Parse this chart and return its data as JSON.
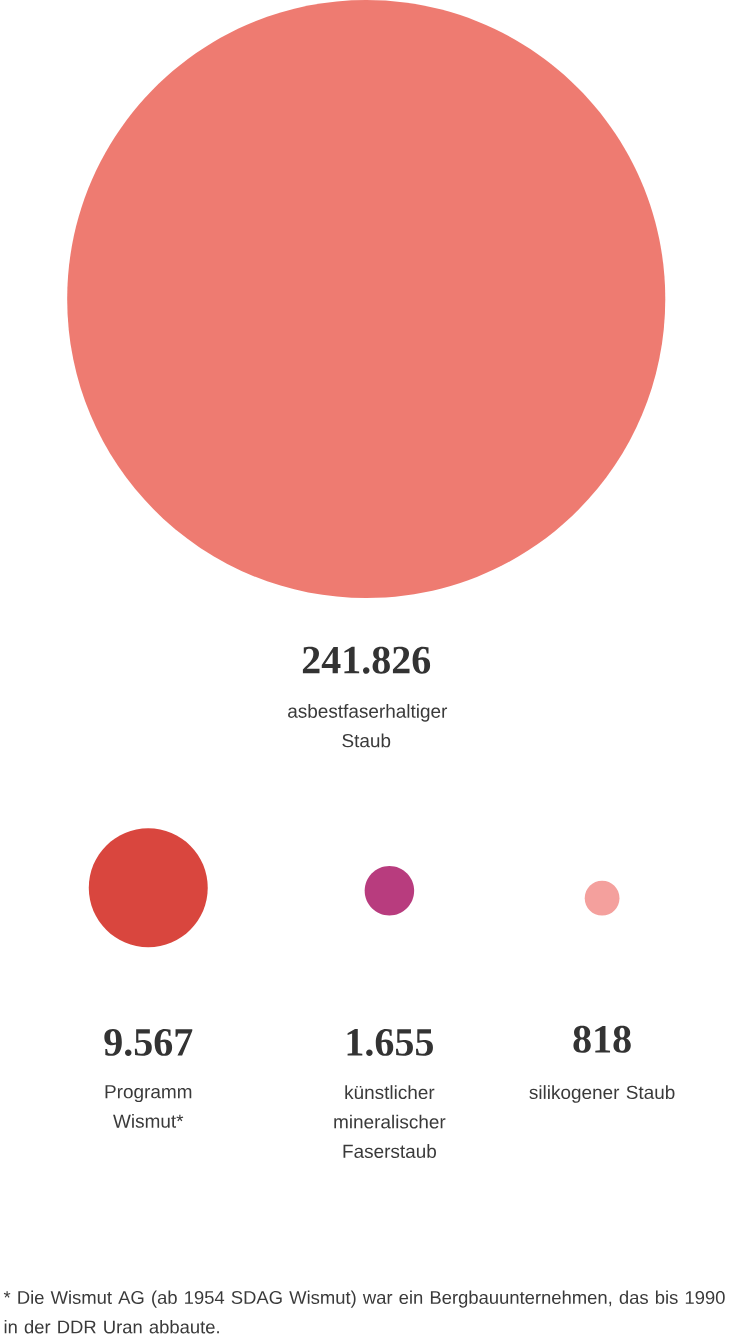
{
  "chart_data": {
    "type": "other",
    "categories": [
      "asbestfaserhaltiger Staub",
      "Programm Wismut*",
      "künstlicher mineralischer Faserstaub",
      "silikogener Staub"
    ],
    "values": [
      241826,
      9567,
      1655,
      818
    ],
    "value_labels": [
      "241.826",
      "9.567",
      "1.655",
      "818"
    ],
    "colors": [
      "#ee7b71",
      "#d9463e",
      "#b83c7e",
      "#f4a09d"
    ],
    "annotations": [
      "* Die Wismut AG (ab 1954 SDAG Wismut) war ein Bergbauunternehmen, das bis 1990 in der DDR Uran abbaute."
    ]
  }
}
